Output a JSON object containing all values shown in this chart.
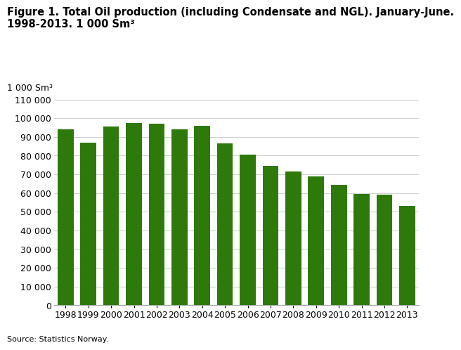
{
  "title_line1": "Figure 1. Total Oil production (including Condensate and NGL). January-June.",
  "title_line2": "1998-2013. 1 000 Sm³",
  "unit_label": "1 000 Sm³",
  "source": "Source: Statistics Norway.",
  "years": [
    1998,
    1999,
    2000,
    2001,
    2002,
    2003,
    2004,
    2005,
    2006,
    2007,
    2008,
    2009,
    2010,
    2011,
    2012,
    2013
  ],
  "values": [
    94000,
    87000,
    95500,
    97500,
    97000,
    94000,
    96000,
    86500,
    80500,
    74500,
    71500,
    69000,
    64500,
    59500,
    59000,
    53000
  ],
  "bar_color": "#2d7a0a",
  "ylim": [
    0,
    110000
  ],
  "yticks": [
    0,
    10000,
    20000,
    30000,
    40000,
    50000,
    60000,
    70000,
    80000,
    90000,
    100000,
    110000
  ],
  "bg_color": "#ffffff",
  "grid_color": "#d0d0d0",
  "title_fontsize": 10.5,
  "tick_fontsize": 9,
  "unit_fontsize": 9,
  "source_fontsize": 8
}
